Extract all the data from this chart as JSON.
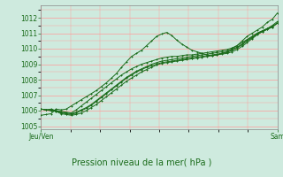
{
  "title": "Pression niveau de la mer( hPa )",
  "bg_color": "#ceeade",
  "plot_bg_color": "#ceeade",
  "grid_major_color": "#ff9999",
  "grid_minor_color": "#ffbbbb",
  "line_color": "#1a6b1a",
  "ylim": [
    1004.8,
    1012.8
  ],
  "yticks": [
    1005,
    1006,
    1007,
    1008,
    1009,
    1010,
    1011,
    1012
  ],
  "xlabel_left": "Jeu/Ven",
  "xlabel_right": "Sam",
  "title_label": "Pression niveau de la mer( hPa )",
  "n_points": 48,
  "series": [
    [
      1005.7,
      1005.75,
      1005.8,
      1006.1,
      1006.05,
      1006.1,
      1006.3,
      1006.5,
      1006.7,
      1006.9,
      1007.1,
      1007.3,
      1007.55,
      1007.8,
      1008.1,
      1008.4,
      1008.8,
      1009.15,
      1009.5,
      1009.7,
      1009.9,
      1010.2,
      1010.5,
      1010.8,
      1010.95,
      1011.05,
      1010.85,
      1010.55,
      1010.3,
      1010.1,
      1009.9,
      1009.8,
      1009.7,
      1009.6,
      1009.55,
      1009.6,
      1009.7,
      1009.8,
      1010.0,
      1010.2,
      1010.5,
      1010.8,
      1011.0,
      1011.2,
      1011.4,
      1011.7,
      1011.9,
      1012.3
    ],
    [
      1006.1,
      1006.05,
      1006.1,
      1006.0,
      1005.95,
      1005.9,
      1005.85,
      1006.05,
      1006.3,
      1006.55,
      1006.8,
      1007.05,
      1007.3,
      1007.55,
      1007.8,
      1008.05,
      1008.3,
      1008.5,
      1008.7,
      1008.85,
      1009.0,
      1009.1,
      1009.2,
      1009.3,
      1009.4,
      1009.45,
      1009.5,
      1009.5,
      1009.55,
      1009.6,
      1009.6,
      1009.65,
      1009.7,
      1009.75,
      1009.8,
      1009.85,
      1009.9,
      1009.95,
      1010.05,
      1010.2,
      1010.4,
      1010.6,
      1010.8,
      1011.0,
      1011.15,
      1011.3,
      1011.5,
      1011.75
    ],
    [
      1006.1,
      1006.05,
      1006.0,
      1005.95,
      1005.8,
      1005.75,
      1005.7,
      1005.75,
      1005.85,
      1006.0,
      1006.2,
      1006.4,
      1006.65,
      1006.9,
      1007.15,
      1007.4,
      1007.65,
      1007.9,
      1008.1,
      1008.3,
      1008.5,
      1008.65,
      1008.8,
      1008.95,
      1009.05,
      1009.1,
      1009.15,
      1009.2,
      1009.25,
      1009.3,
      1009.35,
      1009.4,
      1009.45,
      1009.5,
      1009.55,
      1009.6,
      1009.65,
      1009.7,
      1009.8,
      1009.95,
      1010.15,
      1010.4,
      1010.65,
      1010.9,
      1011.1,
      1011.25,
      1011.4,
      1011.65
    ],
    [
      1006.1,
      1006.05,
      1006.0,
      1005.95,
      1005.85,
      1005.8,
      1005.75,
      1005.85,
      1006.0,
      1006.15,
      1006.35,
      1006.6,
      1006.85,
      1007.1,
      1007.35,
      1007.6,
      1007.85,
      1008.1,
      1008.3,
      1008.5,
      1008.65,
      1008.8,
      1008.9,
      1009.0,
      1009.1,
      1009.15,
      1009.2,
      1009.25,
      1009.3,
      1009.35,
      1009.4,
      1009.45,
      1009.5,
      1009.55,
      1009.6,
      1009.65,
      1009.7,
      1009.75,
      1009.9,
      1010.05,
      1010.25,
      1010.5,
      1010.7,
      1010.95,
      1011.1,
      1011.25,
      1011.4,
      1011.65
    ],
    [
      1006.1,
      1006.05,
      1006.05,
      1006.0,
      1005.9,
      1005.85,
      1005.8,
      1005.9,
      1006.05,
      1006.2,
      1006.4,
      1006.65,
      1006.9,
      1007.15,
      1007.4,
      1007.65,
      1007.9,
      1008.15,
      1008.35,
      1008.55,
      1008.7,
      1008.85,
      1009.0,
      1009.1,
      1009.2,
      1009.25,
      1009.3,
      1009.35,
      1009.4,
      1009.45,
      1009.5,
      1009.55,
      1009.6,
      1009.65,
      1009.7,
      1009.75,
      1009.8,
      1009.85,
      1009.95,
      1010.1,
      1010.3,
      1010.55,
      1010.75,
      1011.0,
      1011.15,
      1011.3,
      1011.45,
      1011.65
    ]
  ]
}
